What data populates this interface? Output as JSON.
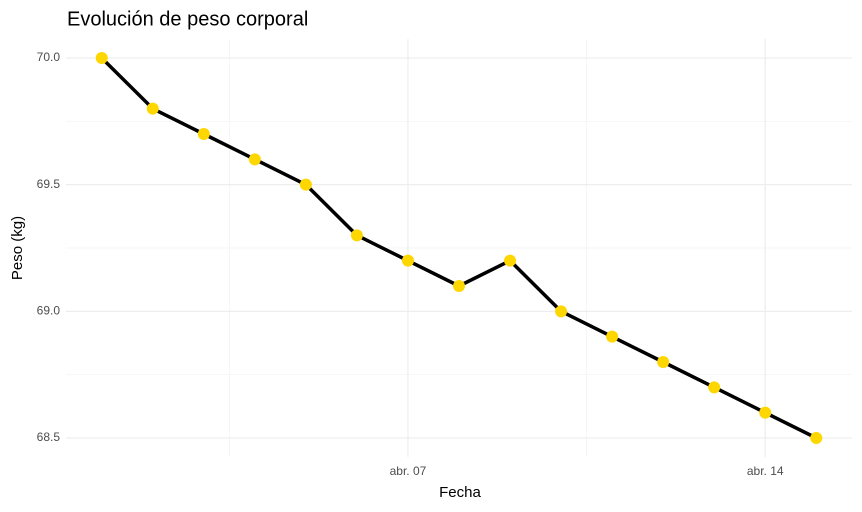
{
  "chart_data": {
    "type": "line",
    "title": "Evolución de peso corporal",
    "x_label": "Fecha",
    "y_label": "Peso (kg)",
    "x": [
      1,
      2,
      3,
      4,
      5,
      6,
      7,
      8,
      9,
      10,
      11,
      12,
      13,
      14,
      15
    ],
    "series": [
      {
        "name": "Peso",
        "color": "#000000",
        "point_color": "#FFD700",
        "values": [
          70.0,
          69.8,
          69.7,
          69.6,
          69.5,
          69.3,
          69.2,
          69.1,
          69.2,
          69.0,
          68.9,
          68.8,
          68.7,
          68.6,
          68.5
        ]
      }
    ],
    "xlim": [
      0.3,
      15.7
    ],
    "xticks": [
      {
        "value": 7,
        "label": "abr. 07"
      },
      {
        "value": 14,
        "label": "abr. 14"
      }
    ],
    "xminorticks": [
      3.5,
      10.5
    ],
    "ylim": [
      68.425,
      70.075
    ],
    "yticks": [
      {
        "value": 70.0,
        "label": "70.0"
      },
      69.5,
      {
        "value": 69.0,
        "label": "69.0"
      },
      68.5
    ],
    "yminorticks": [
      69.75,
      69.25,
      68.75
    ],
    "grid": true
  }
}
